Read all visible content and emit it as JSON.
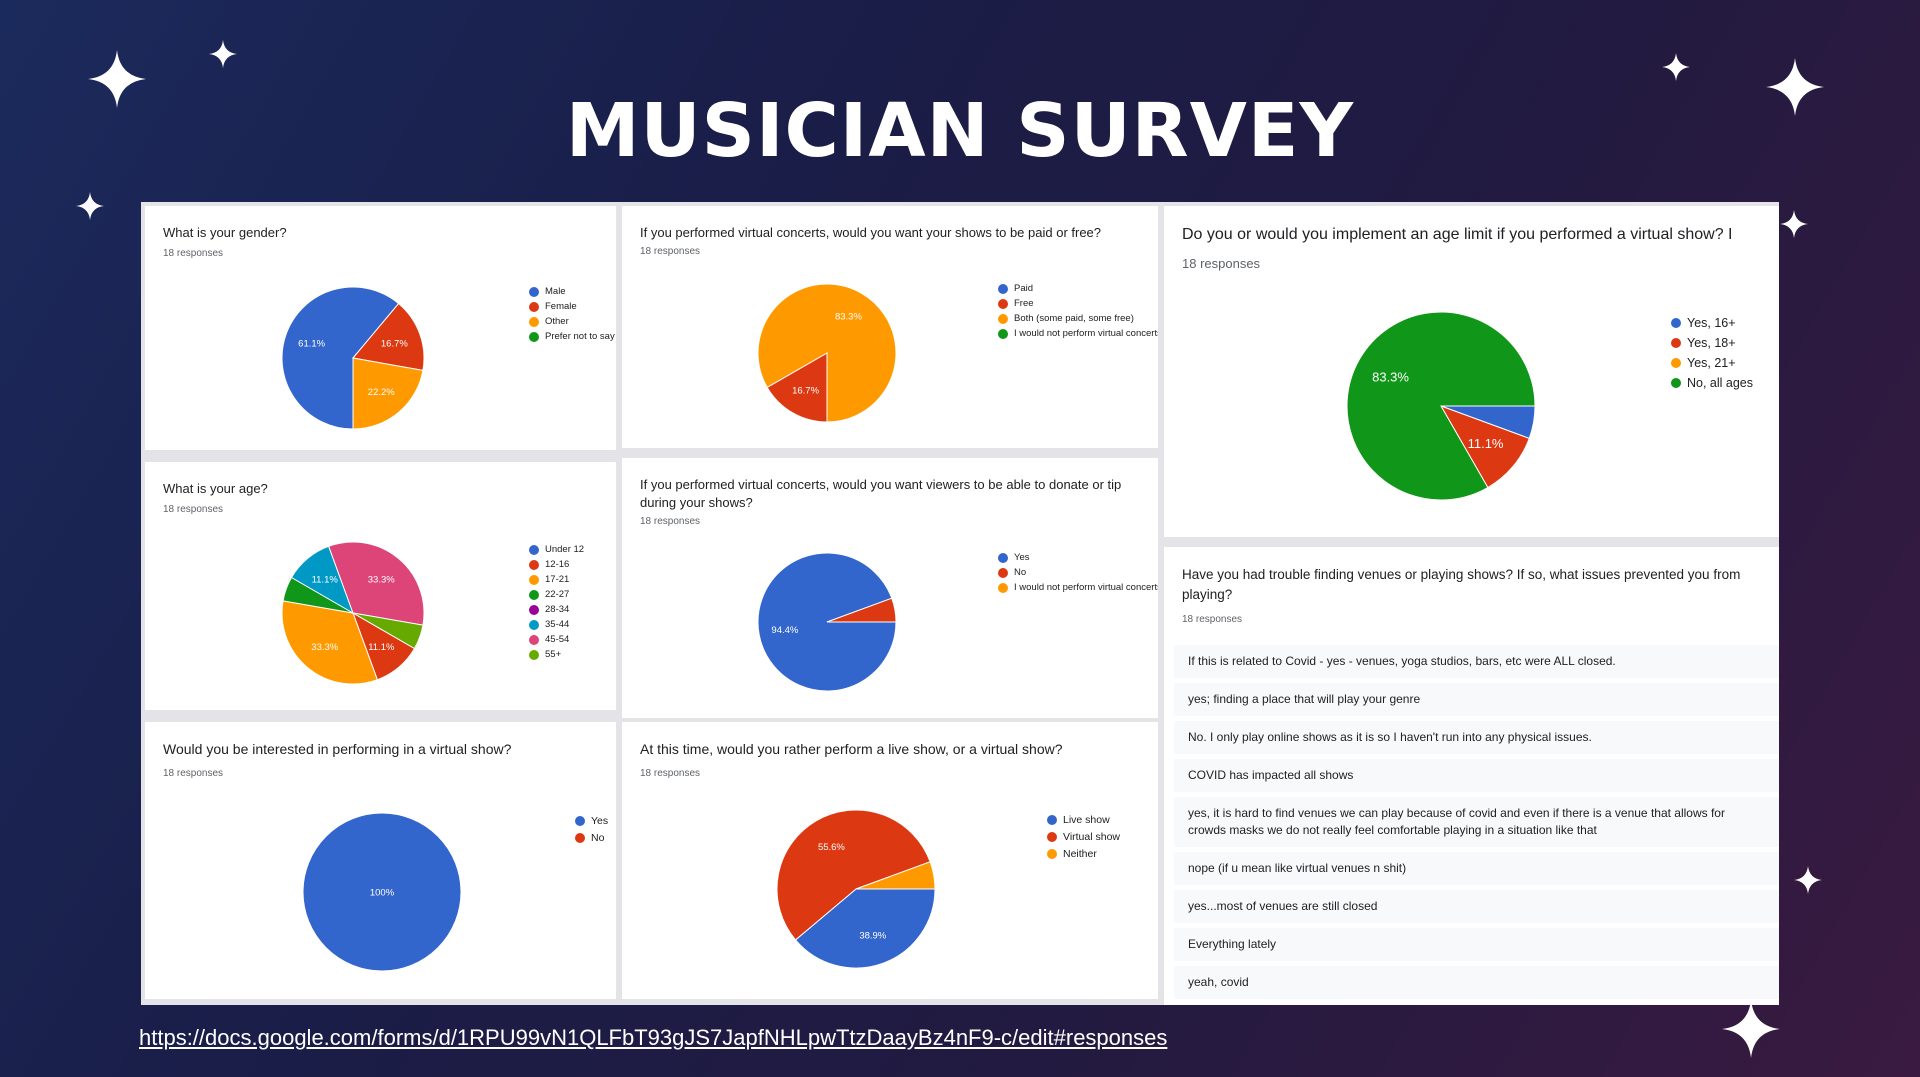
{
  "title": "MUSICIAN SURVEY",
  "url": "https://docs.google.com/forms/d/1RPU99vN1QLFbT93gJS7JapfNHLpwTtzDaayBz4nF9-c/edit#responses",
  "chart_data": [
    {
      "type": "pie",
      "title": "What is your gender?",
      "responses": "18 responses",
      "categories": [
        "Male",
        "Female",
        "Other",
        "Prefer not to say"
      ],
      "colors": [
        "#3366cc",
        "#dc3912",
        "#ff9900",
        "#109618"
      ],
      "values": [
        61.1,
        16.7,
        22.2,
        0
      ],
      "slice_labels": [
        "61.1%",
        "16.7%",
        "22.2%",
        ""
      ]
    },
    {
      "type": "pie",
      "title": "If you performed virtual concerts, would you want your shows to be paid or free?",
      "responses": "18 responses",
      "categories": [
        "Paid",
        "Free",
        "Both (some paid, some free)",
        "I would not perform virtual concerts"
      ],
      "colors": [
        "#3366cc",
        "#dc3912",
        "#ff9900",
        "#109618"
      ],
      "values": [
        0,
        16.7,
        83.3,
        0
      ],
      "slice_labels": [
        "",
        "16.7%",
        "83.3%",
        ""
      ]
    },
    {
      "type": "pie",
      "title": "Do you or would you implement an age limit if you performed a virtual show? I",
      "responses": "18 responses",
      "categories": [
        "Yes, 16+",
        "Yes, 18+",
        "Yes, 21+",
        "No, all ages"
      ],
      "colors": [
        "#3366cc",
        "#dc3912",
        "#ff9900",
        "#109618"
      ],
      "values": [
        5.6,
        11.1,
        0,
        83.3
      ],
      "slice_labels": [
        "",
        "11.1%",
        "",
        "83.3%"
      ]
    },
    {
      "type": "pie",
      "title": "What is your age?",
      "responses": "18 responses",
      "categories": [
        "Under 12",
        "12-16",
        "17-21",
        "22-27",
        "28-34",
        "35-44",
        "45-54",
        "55+"
      ],
      "colors": [
        "#3366cc",
        "#dc3912",
        "#ff9900",
        "#109618",
        "#990099",
        "#0099c6",
        "#dd4477",
        "#66aa00"
      ],
      "values": [
        0,
        11.1,
        33.3,
        5.6,
        0,
        11.1,
        33.3,
        5.6
      ],
      "slice_labels": [
        "",
        "11.1%",
        "33.3%",
        "",
        "",
        "11.1%",
        "33.3%",
        ""
      ]
    },
    {
      "type": "pie",
      "title": "If you performed virtual concerts, would you want viewers to be able to donate or tip during your shows?",
      "responses": "18 responses",
      "categories": [
        "Yes",
        "No",
        "I would not perform virtual concerts"
      ],
      "colors": [
        "#3366cc",
        "#dc3912",
        "#ff9900"
      ],
      "values": [
        94.4,
        5.6,
        0
      ],
      "slice_labels": [
        "94.4%",
        "",
        ""
      ]
    },
    {
      "type": "pie",
      "title": "Would you be interested in performing in a virtual show?",
      "responses": "18 responses",
      "categories": [
        "Yes",
        "No"
      ],
      "colors": [
        "#3366cc",
        "#dc3912"
      ],
      "values": [
        100,
        0
      ],
      "slice_labels": [
        "100%",
        ""
      ]
    },
    {
      "type": "pie",
      "title": "At this time, would you rather perform a live show, or a virtual show?",
      "responses": "18 responses",
      "categories": [
        "Live show",
        "Virtual show",
        "Neither"
      ],
      "colors": [
        "#3366cc",
        "#dc3912",
        "#ff9900"
      ],
      "values": [
        38.9,
        55.6,
        5.6
      ],
      "slice_labels": [
        "38.9%",
        "55.6%",
        ""
      ]
    }
  ],
  "text_question": {
    "question": "Have you had trouble finding venues or playing shows? If so, what issues prevented you from playing?",
    "responses": "18 responses",
    "answers": [
      "If this is related to Covid - yes - venues, yoga studios, bars, etc were ALL closed.",
      "yes; finding a place that will play your genre",
      "No. I only play online shows as it is so I haven't run into any physical issues.",
      "COVID has impacted all shows",
      "yes, it is hard to find venues we can play because of covid and even if there is a venue that allows for crowds masks we do not really feel comfortable playing in a situation like that",
      "nope (if u mean like virtual venues n shit)",
      "yes...most of venues are still closed",
      "Everything lately",
      "yeah, covid"
    ]
  }
}
